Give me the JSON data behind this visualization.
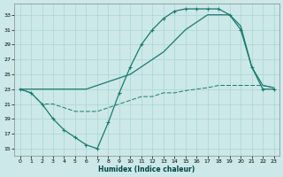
{
  "xlabel": "Humidex (Indice chaleur)",
  "xlim": [
    -0.5,
    23.5
  ],
  "ylim": [
    14,
    34.5
  ],
  "yticks": [
    15,
    17,
    19,
    21,
    23,
    25,
    27,
    29,
    31,
    33
  ],
  "xticks": [
    0,
    1,
    2,
    3,
    4,
    5,
    6,
    7,
    8,
    9,
    10,
    11,
    12,
    13,
    14,
    15,
    16,
    17,
    18,
    19,
    20,
    21,
    22,
    23
  ],
  "bg_color": "#cce8e8",
  "grid_color": "#aad4d4",
  "line_color": "#1a7a6e",
  "line1_x": [
    0,
    1,
    2,
    3,
    4,
    5,
    6,
    7,
    8,
    9,
    10,
    11,
    12,
    13,
    14,
    15,
    16,
    17,
    18,
    19,
    20,
    21,
    22,
    23
  ],
  "line1_y": [
    23,
    22.5,
    21,
    19,
    17.5,
    16.5,
    15.5,
    15,
    18.5,
    22.5,
    26,
    29,
    31,
    32.5,
    33.5,
    33.8,
    33.8,
    33.8,
    33.8,
    33,
    31,
    26,
    23,
    23
  ],
  "line2_x": [
    0,
    1,
    2,
    3,
    4,
    5,
    6,
    7,
    8,
    9,
    10,
    11,
    12,
    13,
    14,
    15,
    16,
    17,
    18,
    19,
    20,
    21,
    22,
    23
  ],
  "line2_y": [
    23,
    23,
    23,
    23,
    23,
    23,
    23,
    23.5,
    24,
    24.5,
    25,
    26,
    27,
    28,
    29.5,
    31,
    32,
    33,
    33,
    33,
    31.5,
    26,
    23.5,
    23.2
  ],
  "line3_x": [
    0,
    1,
    2,
    3,
    4,
    5,
    6,
    7,
    8,
    9,
    10,
    11,
    12,
    13,
    14,
    15,
    16,
    17,
    18,
    19,
    20,
    21,
    22,
    23
  ],
  "line3_y": [
    23,
    22.5,
    21,
    21,
    20.5,
    20,
    20,
    20,
    20.5,
    21,
    21.5,
    22,
    22,
    22.5,
    22.5,
    22.8,
    23,
    23.2,
    23.5,
    23.5,
    23.5,
    23.5,
    23.5,
    23.2
  ]
}
